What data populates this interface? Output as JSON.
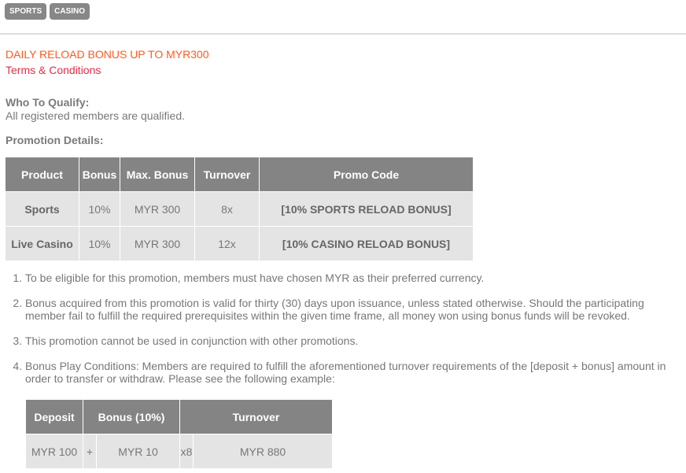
{
  "tabs": [
    "SPORTS",
    "CASINO"
  ],
  "title": "DAILY RELOAD BONUS UP TO MYR300",
  "terms_link": "Terms & Conditions",
  "qualify": {
    "label": "Who To Qualify:",
    "text": "All registered members are qualified."
  },
  "details_label": "Promotion Details:",
  "promo_table": {
    "headers": [
      "Product",
      "Bonus",
      "Max. Bonus",
      "Turnover",
      "Promo Code"
    ],
    "rows": [
      [
        "Sports",
        "10%",
        "MYR 300",
        "8x",
        "[10% SPORTS RELOAD BONUS]"
      ],
      [
        "Live Casino",
        "10%",
        "MYR 300",
        "12x",
        "[10% CASINO RELOAD BONUS]"
      ]
    ]
  },
  "terms": [
    "To be eligible for this promotion, members must have chosen MYR as their preferred currency.",
    "Bonus acquired from this promotion is valid for thirty (30) days upon issuance, unless stated otherwise. Should the participating member fail to fulfill the required prerequisites within the given time frame, all money won using bonus funds will be revoked.",
    "This promotion cannot be used in conjunction with other promotions.",
    "Bonus Play Conditions: Members are required to fulfill the aforementioned turnover requirements of the [deposit + bonus] amount in order to transfer or withdraw. Please see the following example:"
  ],
  "example_table": {
    "headers": [
      "Deposit",
      "Bonus (10%)",
      "Turnover"
    ],
    "row": [
      "MYR 100",
      "+",
      "MYR 10",
      "x8",
      "MYR 880"
    ]
  }
}
